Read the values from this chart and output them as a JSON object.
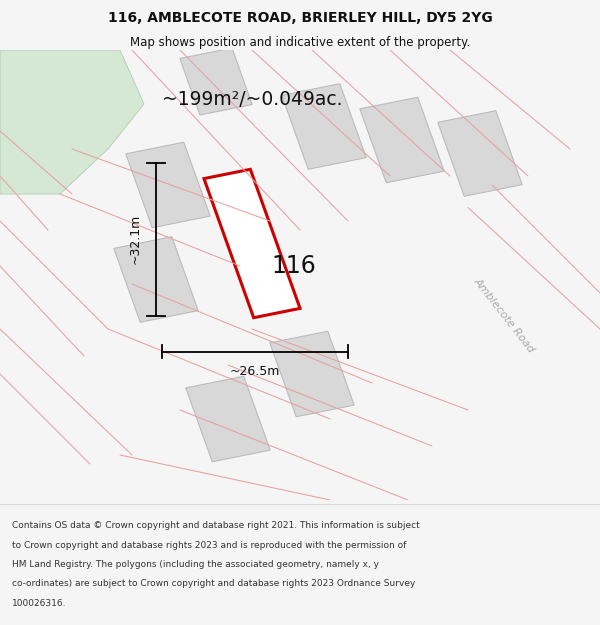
{
  "title_line1": "116, AMBLECOTE ROAD, BRIERLEY HILL, DY5 2YG",
  "title_line2": "Map shows position and indicative extent of the property.",
  "area_text": "~199m²/~0.049ac.",
  "number_label": "116",
  "dim_width": "~26.5m",
  "dim_height": "~32.1m",
  "road_label": "Amblecote Road",
  "footer_lines": [
    "Contains OS data © Crown copyright and database right 2021. This information is subject",
    "to Crown copyright and database rights 2023 and is reproduced with the permission of",
    "HM Land Registry. The polygons (including the associated geometry, namely x, y",
    "co-ordinates) are subject to Crown copyright and database rights 2023 Ordnance Survey",
    "100026316."
  ],
  "bg_color": "#f5f5f5",
  "map_bg": "#ffffff",
  "plot_fill": "#ffffff",
  "plot_edge": "#cc0000",
  "neighbor_fill": "#d8d8d8",
  "neighbor_edge": "#bbbbbb",
  "road_line_color": "#e8a0a0",
  "green_fill": "#d4e8d4",
  "green_edge": "#b0ccb0",
  "dim_line_color": "#000000",
  "road_label_color": "#aaaaaa",
  "title_color": "#111111",
  "footer_color": "#333333"
}
